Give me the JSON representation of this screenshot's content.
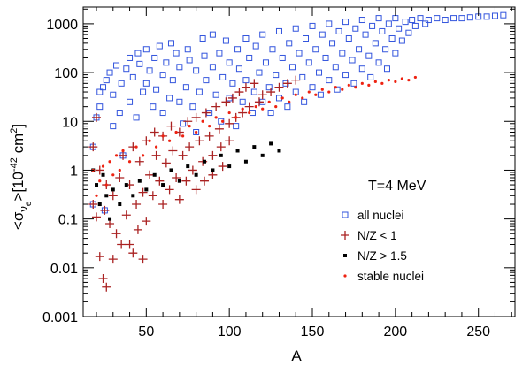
{
  "chart_data": {
    "type": "scatter",
    "title": "",
    "xlabel": "A",
    "ylabel_parts": {
      "open": "<σ",
      "sub1": "ν",
      "sub2": "e",
      "close": ">[10",
      "exp": "-42",
      "unit": " cm",
      "unit_exp": "2",
      "end": "]"
    },
    "xlim": [
      12,
      272
    ],
    "ylim": [
      0.001,
      2200
    ],
    "yscale": "log",
    "x_ticks": [
      50,
      100,
      150,
      200,
      250
    ],
    "x_tick_labels": [
      "50",
      "100",
      "150",
      "200",
      "250"
    ],
    "y_ticks": [
      0.001,
      0.01,
      0.1,
      1,
      10,
      100,
      1000
    ],
    "y_tick_labels": [
      "0.001",
      "0.01",
      "0.1",
      "1",
      "10",
      "100",
      "1000"
    ],
    "annotation": "T=4 MeV",
    "legend_position": "bottom-right",
    "series": [
      {
        "name": "all nuclei",
        "marker": "open-square",
        "color": "#3355dd",
        "points": [
          [
            18,
            0.2
          ],
          [
            18,
            3
          ],
          [
            20,
            12
          ],
          [
            22,
            20
          ],
          [
            22,
            40
          ],
          [
            24,
            50
          ],
          [
            25,
            0.15
          ],
          [
            26,
            70
          ],
          [
            28,
            100
          ],
          [
            30,
            8
          ],
          [
            30,
            35
          ],
          [
            32,
            140
          ],
          [
            34,
            15
          ],
          [
            35,
            60
          ],
          [
            36,
            2
          ],
          [
            38,
            120
          ],
          [
            40,
            25
          ],
          [
            40,
            200
          ],
          [
            42,
            80
          ],
          [
            44,
            12
          ],
          [
            45,
            250
          ],
          [
            46,
            150
          ],
          [
            48,
            40
          ],
          [
            50,
            60
          ],
          [
            50,
            300
          ],
          [
            52,
            110
          ],
          [
            54,
            20
          ],
          [
            55,
            200
          ],
          [
            56,
            45
          ],
          [
            58,
            350
          ],
          [
            60,
            90
          ],
          [
            60,
            15
          ],
          [
            62,
            160
          ],
          [
            64,
            30
          ],
          [
            65,
            400
          ],
          [
            66,
            70
          ],
          [
            68,
            250
          ],
          [
            70,
            25
          ],
          [
            70,
            130
          ],
          [
            72,
            9
          ],
          [
            74,
            50
          ],
          [
            75,
            300
          ],
          [
            76,
            180
          ],
          [
            78,
            20
          ],
          [
            80,
            110
          ],
          [
            80,
            6
          ],
          [
            82,
            40
          ],
          [
            84,
            500
          ],
          [
            85,
            220
          ],
          [
            86,
            70
          ],
          [
            88,
            15
          ],
          [
            90,
            130
          ],
          [
            90,
            600
          ],
          [
            92,
            35
          ],
          [
            94,
            250
          ],
          [
            95,
            10
          ],
          [
            96,
            80
          ],
          [
            98,
            450
          ],
          [
            100,
            160
          ],
          [
            100,
            30
          ],
          [
            102,
            60
          ],
          [
            104,
            8
          ],
          [
            105,
            300
          ],
          [
            106,
            120
          ],
          [
            108,
            25
          ],
          [
            110,
            500
          ],
          [
            110,
            70
          ],
          [
            112,
            200
          ],
          [
            114,
            15
          ],
          [
            115,
            40
          ],
          [
            116,
            350
          ],
          [
            118,
            100
          ],
          [
            120,
            25
          ],
          [
            120,
            600
          ],
          [
            122,
            160
          ],
          [
            124,
            50
          ],
          [
            125,
            15
          ],
          [
            126,
            300
          ],
          [
            128,
            90
          ],
          [
            130,
            30
          ],
          [
            130,
            700
          ],
          [
            132,
            200
          ],
          [
            134,
            60
          ],
          [
            135,
            20
          ],
          [
            136,
            400
          ],
          [
            138,
            130
          ],
          [
            140,
            40
          ],
          [
            140,
            800
          ],
          [
            142,
            250
          ],
          [
            144,
            80
          ],
          [
            145,
            25
          ],
          [
            146,
            500
          ],
          [
            148,
            160
          ],
          [
            150,
            50
          ],
          [
            150,
            900
          ],
          [
            152,
            300
          ],
          [
            154,
            100
          ],
          [
            155,
            35
          ],
          [
            156,
            600
          ],
          [
            158,
            200
          ],
          [
            160,
            70
          ],
          [
            160,
            1000
          ],
          [
            162,
            400
          ],
          [
            164,
            130
          ],
          [
            165,
            45
          ],
          [
            166,
            700
          ],
          [
            168,
            250
          ],
          [
            170,
            90
          ],
          [
            170,
            1100
          ],
          [
            172,
            500
          ],
          [
            174,
            180
          ],
          [
            175,
            60
          ],
          [
            176,
            800
          ],
          [
            178,
            300
          ],
          [
            180,
            120
          ],
          [
            180,
            1200
          ],
          [
            182,
            600
          ],
          [
            184,
            220
          ],
          [
            185,
            80
          ],
          [
            186,
            900
          ],
          [
            188,
            400
          ],
          [
            190,
            160
          ],
          [
            190,
            1300
          ],
          [
            192,
            700
          ],
          [
            194,
            300
          ],
          [
            195,
            120
          ],
          [
            196,
            1000
          ],
          [
            198,
            500
          ],
          [
            200,
            250
          ],
          [
            200,
            1300
          ],
          [
            202,
            800
          ],
          [
            204,
            450
          ],
          [
            206,
            1100
          ],
          [
            208,
            650
          ],
          [
            210,
            1200
          ],
          [
            212,
            900
          ],
          [
            215,
            1300
          ],
          [
            218,
            1000
          ],
          [
            220,
            1200
          ],
          [
            225,
            1300
          ],
          [
            230,
            1200
          ],
          [
            235,
            1300
          ],
          [
            240,
            1300
          ],
          [
            245,
            1350
          ],
          [
            250,
            1400
          ],
          [
            255,
            1400
          ],
          [
            260,
            1450
          ],
          [
            265,
            1500
          ]
        ]
      },
      {
        "name": "N/Z < 1",
        "marker": "plus",
        "color": "#aa2222",
        "points": [
          [
            18,
            0.2
          ],
          [
            18,
            3
          ],
          [
            20,
            12
          ],
          [
            20,
            0.11
          ],
          [
            22,
            0.017
          ],
          [
            22,
            1
          ],
          [
            24,
            0.006
          ],
          [
            25,
            0.15
          ],
          [
            26,
            0.004
          ],
          [
            26,
            0.5
          ],
          [
            28,
            0.08
          ],
          [
            30,
            0.015
          ],
          [
            30,
            0.3
          ],
          [
            32,
            0.05
          ],
          [
            34,
            0.7
          ],
          [
            35,
            0.03
          ],
          [
            36,
            2
          ],
          [
            38,
            0.12
          ],
          [
            40,
            0.03
          ],
          [
            40,
            0.5
          ],
          [
            42,
            0.02
          ],
          [
            42,
            3
          ],
          [
            44,
            0.2
          ],
          [
            45,
            0.06
          ],
          [
            46,
            1.5
          ],
          [
            48,
            0.015
          ],
          [
            48,
            0.35
          ],
          [
            50,
            4
          ],
          [
            50,
            0.09
          ],
          [
            52,
            0.8
          ],
          [
            54,
            0.3
          ],
          [
            55,
            6
          ],
          [
            56,
            2
          ],
          [
            58,
            0.6
          ],
          [
            60,
            0.2
          ],
          [
            60,
            5
          ],
          [
            62,
            1.4
          ],
          [
            64,
            0.4
          ],
          [
            65,
            8
          ],
          [
            66,
            2.5
          ],
          [
            68,
            0.7
          ],
          [
            70,
            0.25
          ],
          [
            70,
            6
          ],
          [
            72,
            2
          ],
          [
            74,
            0.6
          ],
          [
            75,
            10
          ],
          [
            76,
            3
          ],
          [
            78,
            1
          ],
          [
            80,
            0.4
          ],
          [
            80,
            12
          ],
          [
            82,
            4
          ],
          [
            84,
            1.5
          ],
          [
            85,
            0.6
          ],
          [
            86,
            15
          ],
          [
            88,
            5
          ],
          [
            90,
            2
          ],
          [
            90,
            0.8
          ],
          [
            92,
            20
          ],
          [
            94,
            7
          ],
          [
            95,
            3
          ],
          [
            96,
            1.2
          ],
          [
            98,
            25
          ],
          [
            100,
            9
          ],
          [
            100,
            4
          ],
          [
            102,
            30
          ],
          [
            104,
            12
          ],
          [
            106,
            40
          ],
          [
            108,
            15
          ],
          [
            110,
            50
          ],
          [
            112,
            20
          ],
          [
            115,
            60
          ],
          [
            118,
            25
          ],
          [
            120,
            35
          ],
          [
            125,
            40
          ],
          [
            130,
            50
          ],
          [
            135,
            60
          ],
          [
            140,
            70
          ]
        ]
      },
      {
        "name": "N/Z > 1.5",
        "marker": "filled-square",
        "color": "#000000",
        "points": [
          [
            18,
            1
          ],
          [
            20,
            0.5
          ],
          [
            22,
            0.2
          ],
          [
            24,
            0.8
          ],
          [
            26,
            0.3
          ],
          [
            28,
            0.1
          ],
          [
            30,
            0.4
          ],
          [
            34,
            0.2
          ],
          [
            38,
            0.5
          ],
          [
            42,
            0.3
          ],
          [
            46,
            0.6
          ],
          [
            50,
            0.4
          ],
          [
            55,
            0.8
          ],
          [
            60,
            0.5
          ],
          [
            65,
            1
          ],
          [
            70,
            0.6
          ],
          [
            75,
            1.2
          ],
          [
            80,
            0.8
          ],
          [
            85,
            1.5
          ],
          [
            90,
            1
          ],
          [
            95,
            2
          ],
          [
            100,
            1.2
          ],
          [
            105,
            2.5
          ],
          [
            110,
            1.5
          ],
          [
            115,
            3
          ],
          [
            120,
            2
          ],
          [
            125,
            3.5
          ],
          [
            130,
            2.5
          ]
        ]
      },
      {
        "name": "stable nuclei",
        "marker": "dot",
        "color": "#ee2211",
        "points": [
          [
            18,
            1
          ],
          [
            20,
            0.3
          ],
          [
            22,
            0.6
          ],
          [
            24,
            1.2
          ],
          [
            26,
            0.5
          ],
          [
            28,
            1.5
          ],
          [
            30,
            0.8
          ],
          [
            32,
            2
          ],
          [
            34,
            1
          ],
          [
            36,
            2.5
          ],
          [
            40,
            1.5
          ],
          [
            44,
            3
          ],
          [
            48,
            2
          ],
          [
            52,
            4
          ],
          [
            56,
            3
          ],
          [
            60,
            5
          ],
          [
            64,
            4
          ],
          [
            68,
            6
          ],
          [
            72,
            5
          ],
          [
            76,
            8
          ],
          [
            80,
            6
          ],
          [
            84,
            10
          ],
          [
            88,
            8
          ],
          [
            92,
            12
          ],
          [
            96,
            10
          ],
          [
            100,
            15
          ],
          [
            104,
            12
          ],
          [
            108,
            18
          ],
          [
            112,
            15
          ],
          [
            116,
            20
          ],
          [
            120,
            18
          ],
          [
            124,
            25
          ],
          [
            128,
            20
          ],
          [
            132,
            30
          ],
          [
            136,
            25
          ],
          [
            140,
            35
          ],
          [
            144,
            30
          ],
          [
            148,
            40
          ],
          [
            152,
            35
          ],
          [
            156,
            45
          ],
          [
            160,
            40
          ],
          [
            164,
            50
          ],
          [
            168,
            45
          ],
          [
            172,
            55
          ],
          [
            176,
            50
          ],
          [
            180,
            60
          ],
          [
            184,
            55
          ],
          [
            188,
            65
          ],
          [
            192,
            60
          ],
          [
            196,
            70
          ],
          [
            200,
            65
          ],
          [
            204,
            75
          ],
          [
            208,
            70
          ],
          [
            212,
            80
          ]
        ]
      }
    ]
  }
}
